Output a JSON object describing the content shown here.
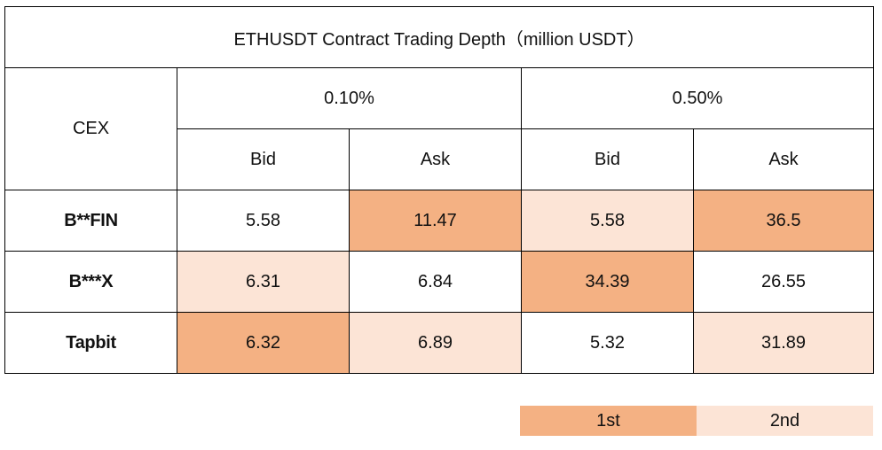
{
  "chart_data": {
    "type": "table",
    "title": "ETHUSDT Contract Trading Depth（million USDT）",
    "row_header_label": "CEX",
    "column_groups": [
      "0.10%",
      "0.50%"
    ],
    "sub_columns": [
      "Bid",
      "Ask",
      "Bid",
      "Ask"
    ],
    "rows": [
      {
        "name": "B**FIN",
        "values": [
          "5.58",
          "11.47",
          "5.58",
          "36.5"
        ],
        "ranks": [
          0,
          1,
          2,
          1
        ]
      },
      {
        "name": "B***X",
        "values": [
          "6.31",
          "6.84",
          "34.39",
          "26.55"
        ],
        "ranks": [
          2,
          0,
          1,
          0
        ]
      },
      {
        "name": "Tapbit",
        "values": [
          "6.32",
          "6.89",
          "5.32",
          "31.89"
        ],
        "ranks": [
          1,
          2,
          0,
          2
        ]
      }
    ],
    "legend": [
      {
        "label": "1st",
        "color": "#f4b183"
      },
      {
        "label": "2nd",
        "color": "#fce4d6"
      }
    ]
  },
  "colors": {
    "none": "#ffffff",
    "first": "#f4b183",
    "second": "#fce4d6",
    "border": "#000000"
  }
}
